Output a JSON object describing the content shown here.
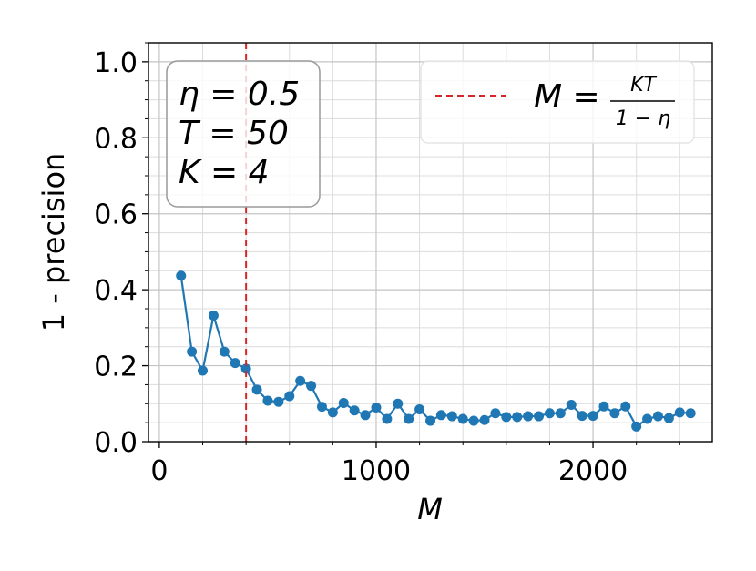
{
  "chart_data": {
    "type": "line",
    "xlabel": "M",
    "ylabel": "1 - precision",
    "xlim": [
      -50,
      2550
    ],
    "ylim": [
      0,
      1.05
    ],
    "x_ticks": [
      0,
      1000,
      2000
    ],
    "y_ticks": [
      0.0,
      0.2,
      0.4,
      0.6,
      0.8,
      1.0
    ],
    "x_tick_labels": [
      "0",
      "1000",
      "2000"
    ],
    "y_tick_labels": [
      "0.0",
      "0.2",
      "0.4",
      "0.6",
      "0.8",
      "1.0"
    ],
    "grid": true,
    "minor_grid": true,
    "series_color": "#1f77b4",
    "reference_line": {
      "x": 400,
      "color": "#d62728",
      "style": "dashed",
      "legend_lhs": "M =",
      "legend_num": "KT",
      "legend_den": "1 − η"
    },
    "legend_placement": "top-right",
    "info_box": [
      "η = 0.5",
      "T = 50",
      "K = 4"
    ],
    "series": [
      {
        "x": [
          100,
          150,
          200,
          250,
          300,
          350,
          400,
          450,
          500,
          550,
          600,
          650,
          700,
          750,
          800,
          850,
          900,
          950,
          1000,
          1050,
          1100,
          1150,
          1200,
          1250,
          1300,
          1350,
          1400,
          1450,
          1500,
          1550,
          1600,
          1650,
          1700,
          1750,
          1800,
          1850,
          1900,
          1950,
          2000,
          2050,
          2100,
          2150,
          2200,
          2250,
          2300,
          2350,
          2400,
          2450
        ],
        "y": [
          0.437,
          0.237,
          0.187,
          0.332,
          0.237,
          0.207,
          0.192,
          0.137,
          0.108,
          0.105,
          0.12,
          0.16,
          0.147,
          0.092,
          0.077,
          0.102,
          0.082,
          0.07,
          0.09,
          0.06,
          0.1,
          0.06,
          0.085,
          0.055,
          0.07,
          0.067,
          0.06,
          0.055,
          0.057,
          0.075,
          0.065,
          0.065,
          0.067,
          0.067,
          0.075,
          0.075,
          0.097,
          0.068,
          0.068,
          0.093,
          0.075,
          0.093,
          0.04,
          0.06,
          0.067,
          0.062,
          0.077,
          0.075
        ]
      }
    ]
  }
}
